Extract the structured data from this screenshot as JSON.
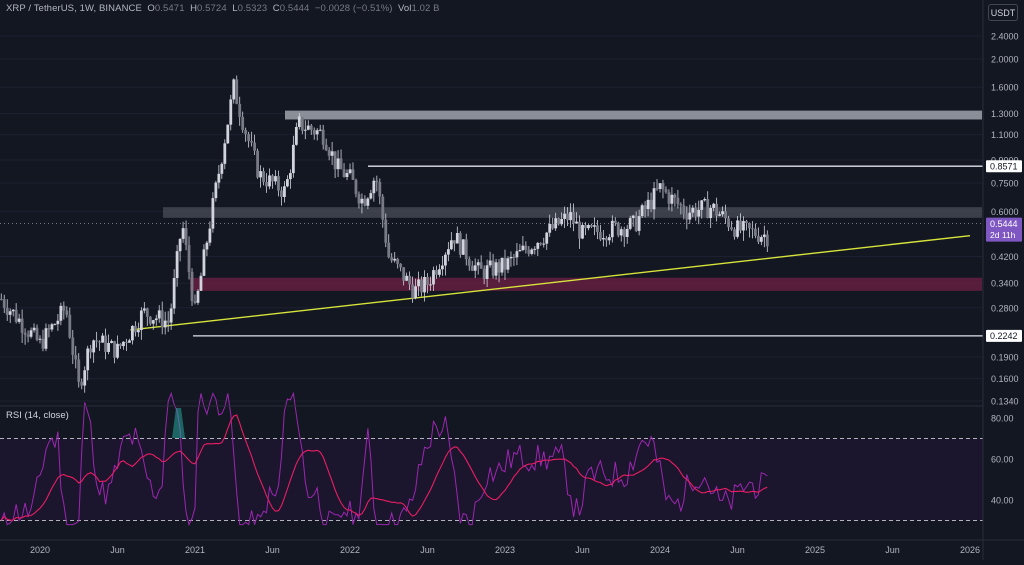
{
  "header": {
    "symbol": "XRP / TetherUS, 1W, BINANCE",
    "o_label": "O",
    "o_value": "0.5471",
    "h_label": "H",
    "h_value": "0.5724",
    "l_label": "L",
    "l_value": "0.5323",
    "c_label": "C",
    "c_value": "0.5444",
    "change": "−0.0028 (−0.51%)",
    "vol_label": "Vol",
    "vol_value": "1.02 B"
  },
  "currency_button": "USDT",
  "rsi": {
    "title": "RSI (14, close)",
    "ticks": [
      "80.00",
      "60.00",
      "40.00"
    ],
    "upper_band": 70,
    "lower_band": 30
  },
  "price_axis": {
    "ticks": [
      "2.4000",
      "2.0000",
      "1.6000",
      "1.3000",
      "1.1000",
      "0.9000",
      "0.7500",
      "0.6000",
      "0.4200",
      "0.3400",
      "0.2800",
      "0.1900",
      "0.1600",
      "0.1340"
    ],
    "labels": {
      "level_upper": "0.8571",
      "current_price": "0.5444",
      "countdown": "2d 11h",
      "level_lower": "0.2242"
    }
  },
  "time_axis": [
    "2020",
    "Jun",
    "2021",
    "Jun",
    "2022",
    "Jun",
    "2023",
    "Jun",
    "2024",
    "Jun",
    "2025",
    "Jun",
    "2026"
  ],
  "colors": {
    "background": "#131722",
    "candle": "#d1d4dc",
    "trendline": "#d7e43a",
    "resistance_zone": "#a0a3ab",
    "support_zone": "#6b1f43",
    "rsi_line": "#9c27b0",
    "rsi_ma": "#e91e63",
    "current_price_tag": "#7e57c2"
  },
  "chart_data": {
    "type": "candlestick",
    "series": [
      {
        "name": "XRP / TetherUS",
        "interval": "1W"
      }
    ],
    "last_candle": {
      "open": 0.5471,
      "high": 0.5724,
      "low": 0.5323,
      "close": 0.5444
    },
    "price_scale": "log",
    "horizontal_levels": [
      0.8571,
      0.2242
    ],
    "resistance_zone": [
      1.24,
      1.33
    ],
    "mid_zone": [
      0.57,
      0.62
    ],
    "support_zone": [
      0.32,
      0.355
    ],
    "trendline": {
      "start_date": "2020-08",
      "start_price": 0.235,
      "end_date": "2026-01",
      "end_price": 0.495
    },
    "indicator": {
      "name": "RSI (14, close)",
      "upper": 70,
      "lower": 30
    }
  }
}
